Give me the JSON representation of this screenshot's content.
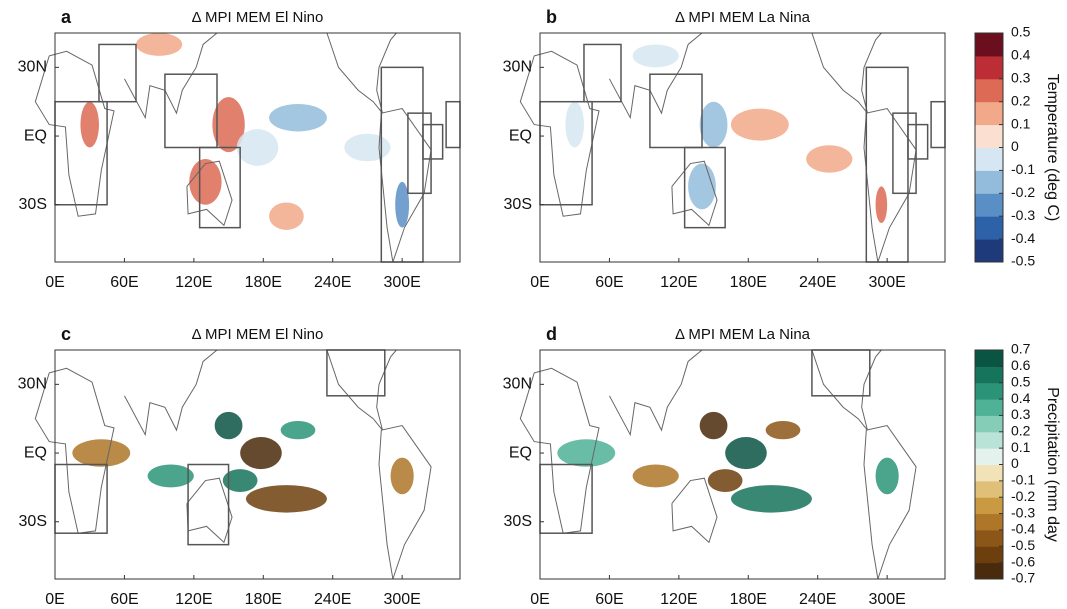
{
  "panels": [
    {
      "letter": "a",
      "title": "Δ MPI MEM El Nino"
    },
    {
      "letter": "b",
      "title": "Δ MPI MEM La Nina"
    },
    {
      "letter": "c",
      "title": "Δ MPI MEM El Nino"
    },
    {
      "letter": "d",
      "title": "Δ MPI MEM La Nina"
    }
  ],
  "map_axes": {
    "xlim": [
      0,
      350
    ],
    "ylim": [
      -55,
      45
    ],
    "xticks": [
      {
        "value": 0,
        "label": "0E"
      },
      {
        "value": 60,
        "label": "60E"
      },
      {
        "value": 120,
        "label": "120E"
      },
      {
        "value": 180,
        "label": "180E"
      },
      {
        "value": 240,
        "label": "240E"
      },
      {
        "value": 300,
        "label": "300E"
      }
    ],
    "yticks": [
      {
        "value": 30,
        "label": "30N"
      },
      {
        "value": 0,
        "label": "EQ"
      },
      {
        "value": -30,
        "label": "30S"
      }
    ]
  },
  "colorbars": [
    {
      "label": "Temperature (deg C)",
      "lim": [
        -0.5,
        0.5
      ],
      "ticks": [
        0.5,
        0.4,
        0.3,
        0.2,
        0.1,
        0,
        -0.1,
        -0.2,
        -0.3,
        -0.4,
        -0.5
      ],
      "colors": [
        "#1f3a7a",
        "#2e62a8",
        "#5a8fc6",
        "#93bcdc",
        "#d6e6f2",
        "#fbe0d2",
        "#f2a98a",
        "#dd6a55",
        "#bd2d35",
        "#6b0f1f"
      ]
    },
    {
      "label": "Precipitation (mm day",
      "lim": [
        -0.7,
        0.7
      ],
      "ticks": [
        0.7,
        0.6,
        0.5,
        0.4,
        0.3,
        0.2,
        0.1,
        0,
        -0.1,
        -0.2,
        -0.3,
        -0.4,
        -0.5,
        -0.6,
        -0.7
      ],
      "colors": [
        "#4a2a0c",
        "#6e3f0e",
        "#8c5618",
        "#ad7628",
        "#c99a42",
        "#e0c078",
        "#f2e2b8",
        "#e4f2ee",
        "#b9e3d6",
        "#86cdb8",
        "#4fb297",
        "#2b9478",
        "#16735c",
        "#0a5444"
      ]
    }
  ]
}
